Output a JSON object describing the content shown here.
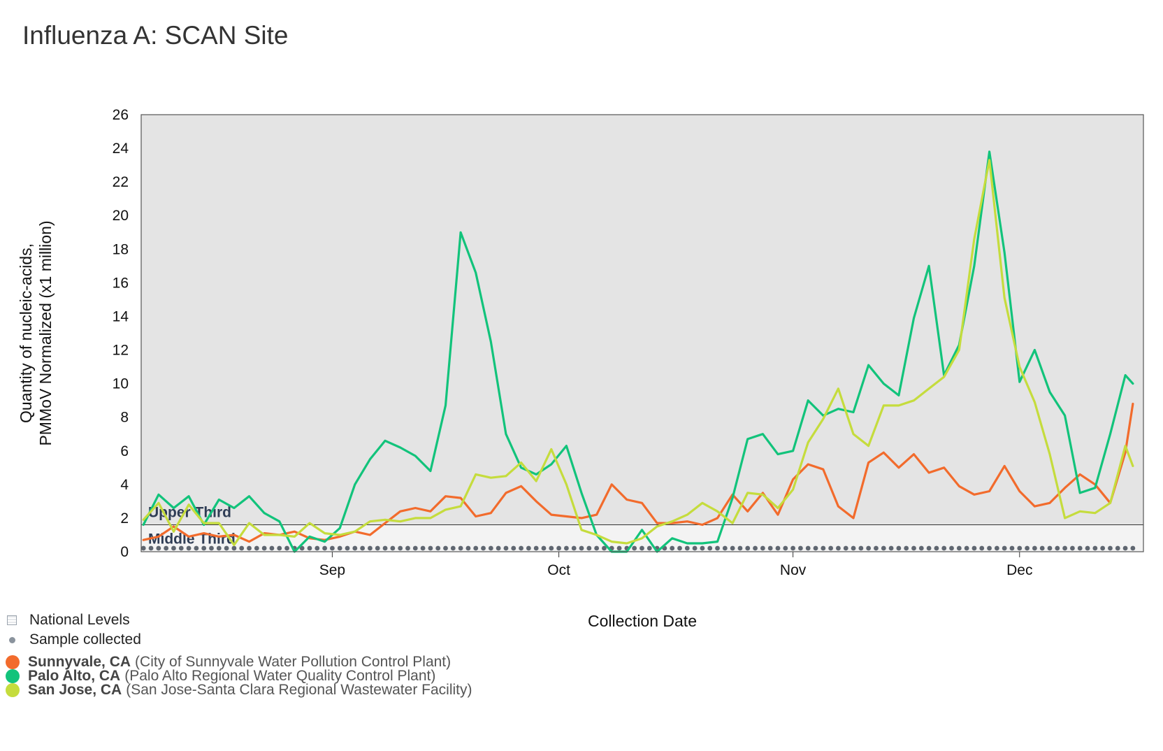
{
  "title": "Influenza A: SCAN Site",
  "chart_data": {
    "type": "line",
    "title": "Influenza A: SCAN Site",
    "xlabel": "Collection Date",
    "ylabel": "Quantity of nucleic-acids, PMMoV Normalized (x1 million)",
    "ylabel_lines": [
      "Quantity of nucleic-acids,",
      "PMMoV Normalized (x1 million)"
    ],
    "x_tick_labels": [
      "Sep",
      "Oct",
      "Nov",
      "Dec"
    ],
    "x_tick_dates": [
      "09-01",
      "10-01",
      "11-01",
      "12-01"
    ],
    "x_start": "08-07",
    "x_end": "12-16",
    "ylim": [
      0,
      26
    ],
    "y_ticks": [
      0,
      2,
      4,
      6,
      8,
      10,
      12,
      14,
      16,
      18,
      20,
      22,
      24,
      26
    ],
    "background_bands": [
      {
        "label": "Upper Third",
        "from": 1.6,
        "to": 26,
        "color": "#e4e4e4"
      },
      {
        "label": "Middle Third",
        "from": 0,
        "to": 1.6,
        "color": "#f3f3f3"
      }
    ],
    "series": [
      {
        "name": "Sunnyvale, CA",
        "color": "#f26b2c",
        "points": [
          [
            "08-07",
            0.7
          ],
          [
            "08-09",
            0.9
          ],
          [
            "08-11",
            1.5
          ],
          [
            "08-13",
            0.9
          ],
          [
            "08-15",
            1.1
          ],
          [
            "08-17",
            0.9
          ],
          [
            "08-19",
            1.0
          ],
          [
            "08-21",
            0.6
          ],
          [
            "08-23",
            1.1
          ],
          [
            "08-25",
            1.0
          ],
          [
            "08-27",
            1.2
          ],
          [
            "08-29",
            0.8
          ],
          [
            "08-31",
            0.7
          ],
          [
            "09-02",
            0.9
          ],
          [
            "09-04",
            1.2
          ],
          [
            "09-06",
            1.0
          ],
          [
            "09-08",
            1.7
          ],
          [
            "09-10",
            2.4
          ],
          [
            "09-12",
            2.6
          ],
          [
            "09-14",
            2.4
          ],
          [
            "09-16",
            3.3
          ],
          [
            "09-18",
            3.2
          ],
          [
            "09-20",
            2.1
          ],
          [
            "09-22",
            2.3
          ],
          [
            "09-24",
            3.5
          ],
          [
            "09-26",
            3.9
          ],
          [
            "09-28",
            3.0
          ],
          [
            "09-30",
            2.2
          ],
          [
            "10-02",
            2.1
          ],
          [
            "10-04",
            2.0
          ],
          [
            "10-06",
            2.2
          ],
          [
            "10-08",
            4.0
          ],
          [
            "10-10",
            3.1
          ],
          [
            "10-12",
            2.9
          ],
          [
            "10-14",
            1.7
          ],
          [
            "10-16",
            1.7
          ],
          [
            "10-18",
            1.8
          ],
          [
            "10-20",
            1.6
          ],
          [
            "10-22",
            2.0
          ],
          [
            "10-24",
            3.4
          ],
          [
            "10-26",
            2.4
          ],
          [
            "10-28",
            3.5
          ],
          [
            "10-30",
            2.2
          ],
          [
            "11-01",
            4.3
          ],
          [
            "11-03",
            5.2
          ],
          [
            "11-05",
            4.9
          ],
          [
            "11-07",
            2.7
          ],
          [
            "11-09",
            2.0
          ],
          [
            "11-11",
            5.3
          ],
          [
            "11-13",
            5.9
          ],
          [
            "11-15",
            5.0
          ],
          [
            "11-17",
            5.8
          ],
          [
            "11-19",
            4.7
          ],
          [
            "11-21",
            5.0
          ],
          [
            "11-23",
            3.9
          ],
          [
            "11-25",
            3.4
          ],
          [
            "11-27",
            3.6
          ],
          [
            "11-29",
            5.1
          ],
          [
            "12-01",
            3.6
          ],
          [
            "12-03",
            2.7
          ],
          [
            "12-05",
            2.9
          ],
          [
            "12-07",
            3.8
          ],
          [
            "12-09",
            4.6
          ],
          [
            "12-11",
            4.0
          ],
          [
            "12-13",
            2.9
          ],
          [
            "12-15",
            5.9
          ],
          [
            "12-16",
            8.8
          ]
        ]
      },
      {
        "name": "Palo Alto, CA",
        "color": "#12c37b",
        "points": [
          [
            "08-07",
            1.6
          ],
          [
            "08-09",
            3.4
          ],
          [
            "08-11",
            2.6
          ],
          [
            "08-13",
            3.3
          ],
          [
            "08-15",
            1.6
          ],
          [
            "08-17",
            3.1
          ],
          [
            "08-19",
            2.6
          ],
          [
            "08-21",
            3.3
          ],
          [
            "08-23",
            2.3
          ],
          [
            "08-25",
            1.8
          ],
          [
            "08-27",
            0.0
          ],
          [
            "08-29",
            0.9
          ],
          [
            "08-31",
            0.6
          ],
          [
            "09-02",
            1.4
          ],
          [
            "09-04",
            4.0
          ],
          [
            "09-06",
            5.5
          ],
          [
            "09-08",
            6.6
          ],
          [
            "09-10",
            6.2
          ],
          [
            "09-12",
            5.7
          ],
          [
            "09-14",
            4.8
          ],
          [
            "09-16",
            8.7
          ],
          [
            "09-18",
            19.0
          ],
          [
            "09-20",
            16.6
          ],
          [
            "09-22",
            12.5
          ],
          [
            "09-24",
            7.0
          ],
          [
            "09-26",
            5.0
          ],
          [
            "09-28",
            4.6
          ],
          [
            "09-30",
            5.2
          ],
          [
            "10-02",
            6.3
          ],
          [
            "10-04",
            3.5
          ],
          [
            "10-06",
            1.0
          ],
          [
            "10-08",
            0.0
          ],
          [
            "10-10",
            0.0
          ],
          [
            "10-12",
            1.3
          ],
          [
            "10-14",
            0.0
          ],
          [
            "10-16",
            0.8
          ],
          [
            "10-18",
            0.5
          ],
          [
            "10-20",
            0.5
          ],
          [
            "10-22",
            0.6
          ],
          [
            "10-24",
            3.2
          ],
          [
            "10-26",
            6.7
          ],
          [
            "10-28",
            7.0
          ],
          [
            "10-30",
            5.8
          ],
          [
            "11-01",
            6.0
          ],
          [
            "11-03",
            9.0
          ],
          [
            "11-05",
            8.1
          ],
          [
            "11-07",
            8.5
          ],
          [
            "11-09",
            8.3
          ],
          [
            "11-11",
            11.1
          ],
          [
            "11-13",
            10.0
          ],
          [
            "11-15",
            9.3
          ],
          [
            "11-17",
            13.9
          ],
          [
            "11-19",
            17.0
          ],
          [
            "11-21",
            10.5
          ],
          [
            "11-23",
            12.3
          ],
          [
            "11-25",
            17.0
          ],
          [
            "11-27",
            23.8
          ],
          [
            "11-29",
            17.8
          ],
          [
            "12-01",
            10.1
          ],
          [
            "12-03",
            12.0
          ],
          [
            "12-05",
            9.5
          ],
          [
            "12-07",
            8.1
          ],
          [
            "12-09",
            3.5
          ],
          [
            "12-11",
            3.8
          ],
          [
            "12-13",
            7.0
          ],
          [
            "12-15",
            10.5
          ],
          [
            "12-16",
            10.0
          ]
        ]
      },
      {
        "name": "San Jose, CA",
        "color": "#c5dc3d",
        "points": [
          [
            "08-07",
            1.9
          ],
          [
            "08-09",
            2.9
          ],
          [
            "08-11",
            1.2
          ],
          [
            "08-13",
            2.8
          ],
          [
            "08-15",
            1.7
          ],
          [
            "08-17",
            1.7
          ],
          [
            "08-19",
            0.4
          ],
          [
            "08-21",
            1.7
          ],
          [
            "08-23",
            1.0
          ],
          [
            "08-25",
            1.0
          ],
          [
            "08-27",
            0.9
          ],
          [
            "08-29",
            1.7
          ],
          [
            "08-31",
            1.1
          ],
          [
            "09-02",
            1.0
          ],
          [
            "09-04",
            1.2
          ],
          [
            "09-06",
            1.8
          ],
          [
            "09-08",
            1.9
          ],
          [
            "09-10",
            1.8
          ],
          [
            "09-12",
            2.0
          ],
          [
            "09-14",
            2.0
          ],
          [
            "09-16",
            2.5
          ],
          [
            "09-18",
            2.7
          ],
          [
            "09-20",
            4.6
          ],
          [
            "09-22",
            4.4
          ],
          [
            "09-24",
            4.5
          ],
          [
            "09-26",
            5.3
          ],
          [
            "09-28",
            4.2
          ],
          [
            "09-30",
            6.1
          ],
          [
            "10-02",
            4.0
          ],
          [
            "10-04",
            1.3
          ],
          [
            "10-06",
            1.0
          ],
          [
            "10-08",
            0.6
          ],
          [
            "10-10",
            0.5
          ],
          [
            "10-12",
            0.8
          ],
          [
            "10-14",
            1.5
          ],
          [
            "10-16",
            1.8
          ],
          [
            "10-18",
            2.2
          ],
          [
            "10-20",
            2.9
          ],
          [
            "10-22",
            2.4
          ],
          [
            "10-24",
            1.7
          ],
          [
            "10-26",
            3.5
          ],
          [
            "10-28",
            3.4
          ],
          [
            "10-30",
            2.6
          ],
          [
            "11-01",
            3.7
          ],
          [
            "11-03",
            6.5
          ],
          [
            "11-05",
            7.9
          ],
          [
            "11-07",
            9.7
          ],
          [
            "11-09",
            7.0
          ],
          [
            "11-11",
            6.3
          ],
          [
            "11-13",
            8.7
          ],
          [
            "11-15",
            8.7
          ],
          [
            "11-17",
            9.0
          ],
          [
            "11-19",
            9.7
          ],
          [
            "11-21",
            10.4
          ],
          [
            "11-23",
            12.0
          ],
          [
            "11-25",
            18.6
          ],
          [
            "11-27",
            23.3
          ],
          [
            "11-29",
            15.1
          ],
          [
            "12-01",
            11.0
          ],
          [
            "12-03",
            8.9
          ],
          [
            "12-05",
            5.8
          ],
          [
            "12-07",
            2.0
          ],
          [
            "12-09",
            2.4
          ],
          [
            "12-11",
            2.3
          ],
          [
            "12-13",
            2.9
          ],
          [
            "12-15",
            6.3
          ],
          [
            "12-16",
            5.1
          ]
        ]
      }
    ],
    "sample_marker_start": "08-07",
    "sample_marker_end": "12-16",
    "legend_position": "bottom-left",
    "grid": false
  },
  "legend": {
    "national_levels": "National Levels",
    "sample_collected": "Sample collected",
    "sites": [
      {
        "name": "Sunnyvale, CA",
        "detail": "(City of Sunnyvale Water Pollution Control Plant)",
        "color": "#f26b2c"
      },
      {
        "name": "Palo Alto, CA",
        "detail": "(Palo Alto Regional Water Quality Control Plant)",
        "color": "#12c37b"
      },
      {
        "name": "San Jose, CA",
        "detail": "(San Jose-Santa Clara Regional Wastewater Facility)",
        "color": "#c5dc3d"
      }
    ]
  }
}
